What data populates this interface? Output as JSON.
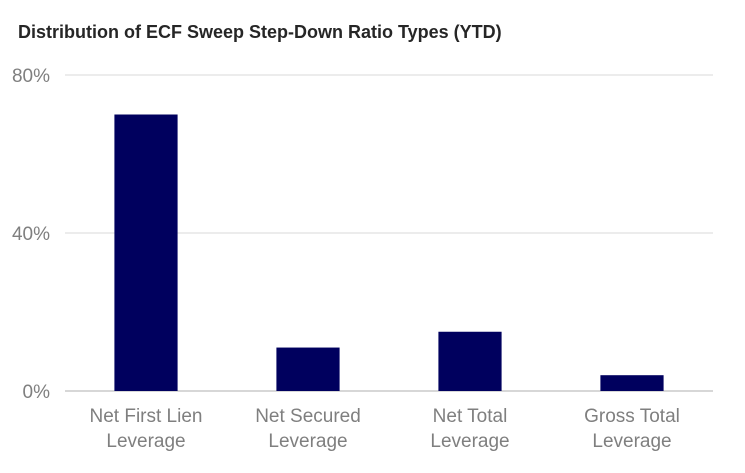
{
  "chart_data": {
    "type": "bar",
    "title": "Distribution of ECF Sweep Step-Down Ratio Types (YTD)",
    "categories": [
      [
        "Net First Lien",
        "Leverage"
      ],
      [
        "Net Secured",
        "Leverage"
      ],
      [
        "Net Total",
        "Leverage"
      ],
      [
        "Gross Total",
        "Leverage"
      ]
    ],
    "values": [
      70,
      11,
      15,
      4
    ],
    "ylim": [
      0,
      80
    ],
    "yticks": [
      0,
      40,
      80
    ],
    "ytick_labels": [
      "0%",
      "40%",
      "80%"
    ],
    "unit": "%",
    "grid": true,
    "bar_color": "#00005e",
    "grid_color": "#d9d9d9",
    "axis_color": "#bfbfbf",
    "label_color": "#7f7f7f",
    "xlabel": "",
    "ylabel": ""
  }
}
